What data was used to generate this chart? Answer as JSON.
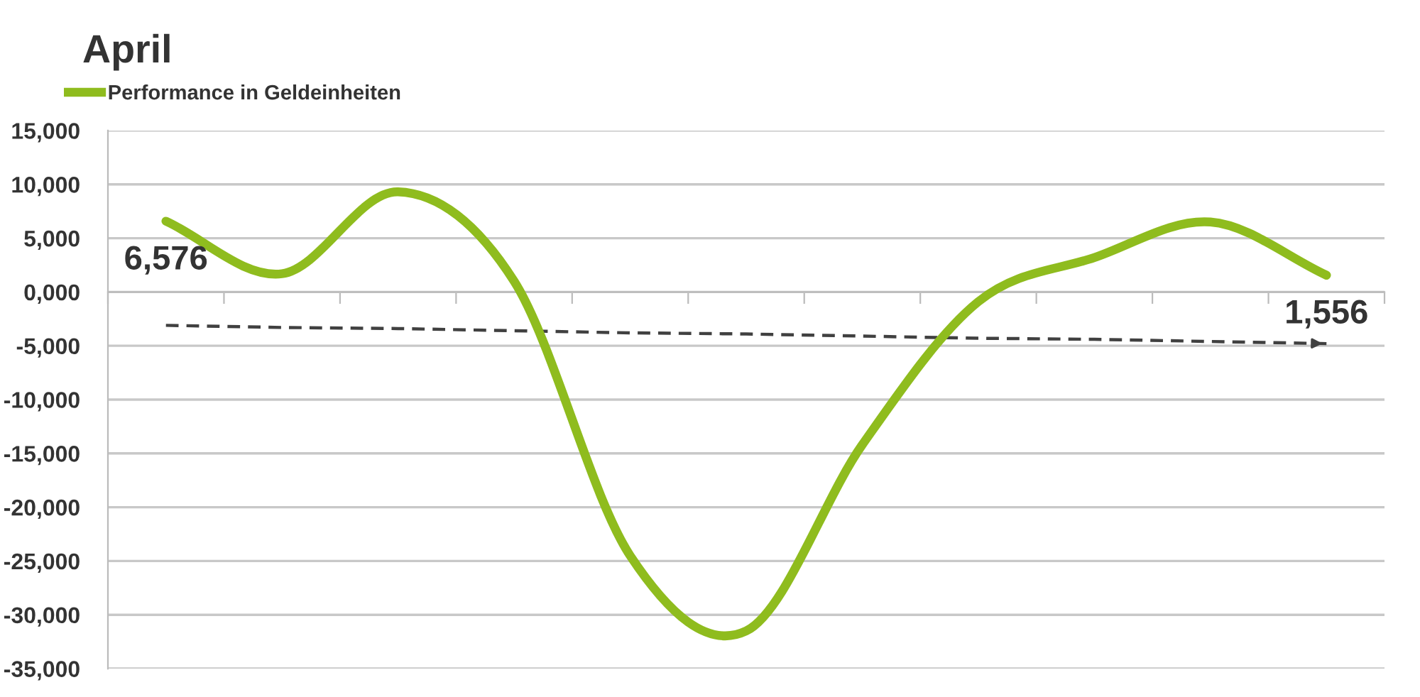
{
  "chart_data": {
    "type": "line",
    "title": "April",
    "categories": [
      null,
      null,
      null,
      null,
      null,
      null,
      null,
      null,
      null,
      null,
      null
    ],
    "series": [
      {
        "name": "Performance in Geldeinheiten",
        "color": "#8fbc1e",
        "values": [
          6576,
          1700,
          9300,
          1000,
          -24500,
          -31500,
          -14200,
          -900,
          3200,
          6500,
          1556
        ],
        "value_labels": [
          "6,576",
          null,
          null,
          null,
          null,
          null,
          null,
          null,
          null,
          null,
          "1,556"
        ]
      },
      {
        "type": "line",
        "color": "#404040",
        "line_style": "dashed",
        "values": [
          -3100,
          -3300,
          -3400,
          -3600,
          -3800,
          -3900,
          -4100,
          -4300,
          -4400,
          -4600,
          -4800
        ]
      }
    ],
    "ylim": [
      -35000,
      15000
    ],
    "yticks": [
      {
        "value": 15000,
        "label": "15,000"
      },
      {
        "value": 10000,
        "label": "10,000"
      },
      {
        "value": 5000,
        "label": "5,000"
      },
      {
        "value": 0,
        "label": "0,000"
      },
      {
        "value": -5000,
        "label": "-5,000"
      },
      {
        "value": -10000,
        "label": "-10,000"
      },
      {
        "value": -15000,
        "label": "-15,000"
      },
      {
        "value": -20000,
        "label": "-20,000"
      },
      {
        "value": -25000,
        "label": "-25,000"
      },
      {
        "value": -30000,
        "label": "-30,000"
      },
      {
        "value": -35000,
        "label": "-35,000"
      }
    ],
    "grid": "y",
    "legend": "top left",
    "tick_labels": "y"
  }
}
